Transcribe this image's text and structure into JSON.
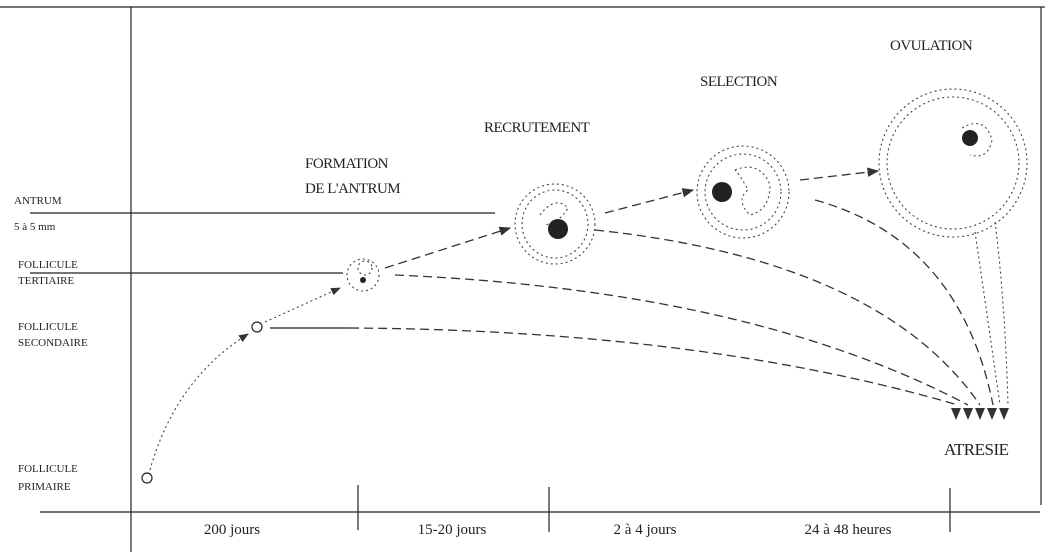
{
  "stages": [
    {
      "lines": [
        "FORMATION",
        "DE L'ANTRUM"
      ]
    },
    {
      "lines": [
        "RECRUTEMENT"
      ]
    },
    {
      "lines": [
        "SELECTION"
      ]
    },
    {
      "lines": [
        "OVULATION"
      ]
    }
  ],
  "levels": [
    {
      "lines": [
        "ANTRUM",
        "5 à 5 mm"
      ]
    },
    {
      "lines": [
        "FOLLICULE",
        "TERTIAIRE"
      ]
    },
    {
      "lines": [
        "FOLLICULE",
        "SECONDAIRE"
      ]
    },
    {
      "lines": [
        "FOLLICULE",
        "PRIMAIRE"
      ]
    }
  ],
  "outcome": "ATRESIE",
  "durations": [
    "200 jours",
    "15-20 jours",
    "2 à 4 jours",
    "24 à 48 heures"
  ]
}
